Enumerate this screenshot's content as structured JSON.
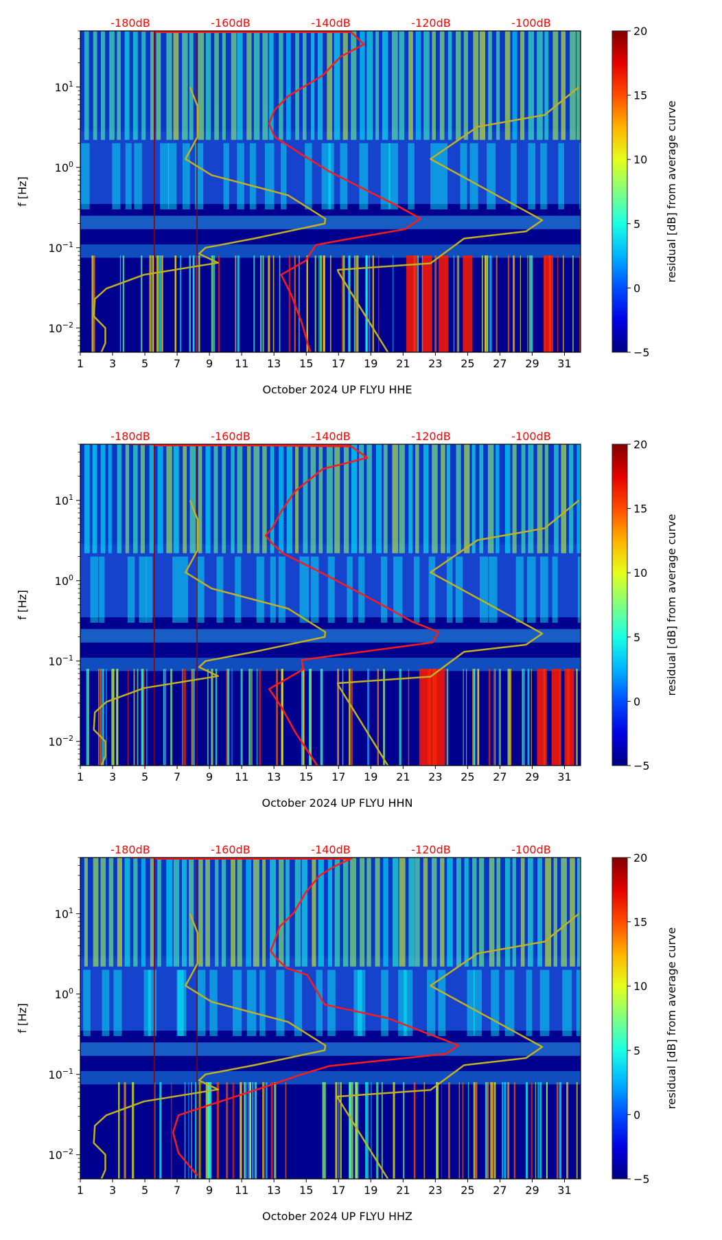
{
  "chart_data": [
    {
      "type": "heatmap",
      "panel": "HHE",
      "xlabel": "October 2024 UP FLYU  HHE",
      "ylabel": "f [Hz]",
      "x_ticks": [
        "1",
        "3",
        "5",
        "7",
        "9",
        "11",
        "13",
        "15",
        "17",
        "19",
        "21",
        "23",
        "25",
        "27",
        "29",
        "31"
      ],
      "x_tick_values": [
        1,
        3,
        5,
        7,
        9,
        11,
        13,
        15,
        17,
        19,
        21,
        23,
        25,
        27,
        29,
        31
      ],
      "xlim": [
        1,
        32
      ],
      "y_scale": "log",
      "ylim": [
        0.005,
        50
      ],
      "y_ticks": [
        {
          "base": "10",
          "exp": "1",
          "value": 10
        },
        {
          "base": "10",
          "exp": "0",
          "value": 1
        },
        {
          "base": "10",
          "exp": "−1",
          "value": 0.1
        },
        {
          "base": "10",
          "exp": "−2",
          "value": 0.01
        }
      ],
      "top_axis": {
        "labels": [
          "-180dB",
          "-160dB",
          "-140dB",
          "-120dB",
          "-100dB"
        ],
        "values": [
          -180,
          -160,
          -140,
          -120,
          -100
        ],
        "color": "#ff0000"
      },
      "colorbar": {
        "label": "residual [dB] from average curve",
        "range": [
          -5,
          20
        ],
        "ticks": [
          "20",
          "15",
          "10",
          "5",
          "0",
          "−5"
        ],
        "tick_values": [
          20,
          15,
          10,
          5,
          0,
          -5
        ],
        "colormap": "jet"
      },
      "series": [
        {
          "name": "mean PSD",
          "color": "#ff1a1a",
          "db": [
            -180,
            -136.2,
            -133.4,
            -138,
            -141.6,
            -148.5,
            -151.2,
            -152.3,
            -151.2,
            -145.8,
            -140.3,
            -132.1,
            -126.6,
            -122.1,
            -125.2,
            -137.5,
            -143,
            -145,
            -149.9,
            -147.9,
            -145.8,
            -144.1
          ],
          "hz": [
            50,
            50,
            34,
            24,
            14,
            7.7,
            5.2,
            3.5,
            2.4,
            1.45,
            0.89,
            0.49,
            0.33,
            0.23,
            0.17,
            0.125,
            0.108,
            0.069,
            0.046,
            0.026,
            0.0116,
            0.005
          ]
        },
        {
          "name": "NLNM",
          "color": "#c2b120",
          "db": [
            -168.1,
            -166.6,
            -166.6,
            -169,
            -163.8,
            -148.5,
            -141.1,
            -141.2,
            -155.3,
            -165,
            -166.3,
            -162.5,
            -177.3,
            -184.8,
            -187.1,
            -187.3,
            -185,
            -185,
            -185.8
          ],
          "hz": [
            10,
            5.8,
            2.4,
            1.27,
            0.8,
            0.45,
            0.23,
            0.2,
            0.13,
            0.1,
            0.084,
            0.065,
            0.046,
            0.031,
            0.023,
            0.014,
            0.01,
            0.0065,
            0.005
          ]
        },
        {
          "name": "NHNM",
          "color": "#c2b120",
          "db": [
            -90.5,
            -97.3,
            -110.7,
            -120.1,
            -97.8,
            -101,
            -113.4,
            -120.1,
            -138.6,
            -138.5,
            -128.6
          ],
          "hz": [
            10,
            4.5,
            3.2,
            1.27,
            0.22,
            0.16,
            0.13,
            0.064,
            0.053,
            0.05,
            0.005
          ]
        }
      ],
      "hot_days": [
        21.5,
        22.5,
        23.5,
        25.0,
        30.0
      ]
    },
    {
      "type": "heatmap",
      "panel": "HHN",
      "xlabel": "October 2024 UP FLYU  HHN",
      "ylabel": "f [Hz]",
      "x_ticks": [
        "1",
        "3",
        "5",
        "7",
        "9",
        "11",
        "13",
        "15",
        "17",
        "19",
        "21",
        "23",
        "25",
        "27",
        "29",
        "31"
      ],
      "x_tick_values": [
        1,
        3,
        5,
        7,
        9,
        11,
        13,
        15,
        17,
        19,
        21,
        23,
        25,
        27,
        29,
        31
      ],
      "xlim": [
        1,
        32
      ],
      "y_scale": "log",
      "ylim": [
        0.005,
        50
      ],
      "y_ticks": [
        {
          "base": "10",
          "exp": "1",
          "value": 10
        },
        {
          "base": "10",
          "exp": "0",
          "value": 1
        },
        {
          "base": "10",
          "exp": "−1",
          "value": 0.1
        },
        {
          "base": "10",
          "exp": "−2",
          "value": 0.01
        }
      ],
      "top_axis": {
        "labels": [
          "-180dB",
          "-160dB",
          "-140dB",
          "-120dB",
          "-100dB"
        ],
        "values": [
          -180,
          -160,
          -140,
          -120,
          -100
        ],
        "color": "#ff0000"
      },
      "colorbar": {
        "label": "residual [dB] from average curve",
        "range": [
          -5,
          20
        ],
        "ticks": [
          "20",
          "15",
          "10",
          "5",
          "0",
          "−5"
        ],
        "tick_values": [
          20,
          15,
          10,
          5,
          0,
          -5
        ],
        "colormap": "jet"
      },
      "series": [
        {
          "name": "mean PSD",
          "color": "#ff1a1a",
          "db": [
            -180,
            -135.9,
            -132.7,
            -138,
            -141.6,
            -147.1,
            -149.9,
            -151.6,
            -153,
            -151.9,
            -149.6,
            -140.3,
            -130,
            -123.8,
            -118.5,
            -119.7,
            -138.9,
            -145.8,
            -145.5,
            -152.3,
            -149.9,
            -147.1,
            -142.7
          ],
          "hz": [
            50,
            47,
            34,
            28,
            24.6,
            13,
            7.3,
            4.6,
            3.66,
            3.0,
            2.2,
            1.12,
            0.51,
            0.31,
            0.23,
            0.17,
            0.118,
            0.103,
            0.079,
            0.045,
            0.027,
            0.013,
            0.005
          ]
        },
        {
          "name": "NLNM",
          "color": "#c2b120",
          "db": [
            -168.1,
            -166.6,
            -166.6,
            -169,
            -163.8,
            -148.5,
            -141.1,
            -141.2,
            -155.3,
            -165,
            -166.3,
            -162.5,
            -177.3,
            -184.8,
            -187.1,
            -187.3,
            -185,
            -185,
            -185.8
          ],
          "hz": [
            10,
            5.8,
            2.4,
            1.27,
            0.8,
            0.45,
            0.23,
            0.2,
            0.13,
            0.1,
            0.084,
            0.065,
            0.046,
            0.031,
            0.023,
            0.014,
            0.01,
            0.0065,
            0.005
          ]
        },
        {
          "name": "NHNM",
          "color": "#c2b120",
          "db": [
            -90.5,
            -97.3,
            -110.7,
            -120.1,
            -97.8,
            -101,
            -113.4,
            -120.1,
            -138.6,
            -138.5,
            -128.6
          ],
          "hz": [
            10,
            4.5,
            3.2,
            1.27,
            0.22,
            0.16,
            0.13,
            0.064,
            0.053,
            0.05,
            0.005
          ]
        }
      ],
      "hot_days": [
        22.3,
        22.8,
        23.3,
        29.6,
        30.5,
        31.3
      ]
    },
    {
      "type": "heatmap",
      "panel": "HHZ",
      "xlabel": "October 2024 UP FLYU  HHZ",
      "ylabel": "f [Hz]",
      "x_ticks": [
        "1",
        "3",
        "5",
        "7",
        "9",
        "11",
        "13",
        "15",
        "17",
        "19",
        "21",
        "23",
        "25",
        "27",
        "29",
        "31"
      ],
      "x_tick_values": [
        1,
        3,
        5,
        7,
        9,
        11,
        13,
        15,
        17,
        19,
        21,
        23,
        25,
        27,
        29,
        31
      ],
      "xlim": [
        1,
        32
      ],
      "y_scale": "log",
      "ylim": [
        0.005,
        50
      ],
      "y_ticks": [
        {
          "base": "10",
          "exp": "1",
          "value": 10
        },
        {
          "base": "10",
          "exp": "0",
          "value": 1
        },
        {
          "base": "10",
          "exp": "−1",
          "value": 0.1
        },
        {
          "base": "10",
          "exp": "−2",
          "value": 0.01
        }
      ],
      "top_axis": {
        "labels": [
          "-180dB",
          "-160dB",
          "-140dB",
          "-120dB",
          "-100dB"
        ],
        "values": [
          -180,
          -160,
          -140,
          -120,
          -100
        ],
        "color": "#ff0000"
      },
      "colorbar": {
        "label": "residual [dB] from average curve",
        "range": [
          -5,
          20
        ],
        "ticks": [
          "20",
          "15",
          "10",
          "5",
          "0",
          "−5"
        ],
        "tick_values": [
          20,
          15,
          10,
          5,
          0,
          -5
        ],
        "colormap": "jet"
      },
      "series": [
        {
          "name": "mean PSD",
          "color": "#ff1a1a",
          "db": [
            -180,
            -135.8,
            -139.2,
            -142.2,
            -145,
            -147.4,
            -150.2,
            -151.2,
            -152,
            -150.9,
            -148.8,
            -144.7,
            -141.2,
            -128.6,
            -114.5,
            -117,
            -140.3,
            -145.8,
            -154,
            -165,
            -170.4,
            -171.5,
            -170.4,
            -166.6
          ],
          "hz": [
            50,
            49,
            39,
            30,
            18.4,
            10.2,
            6.9,
            4.6,
            3.45,
            2.8,
            2.1,
            1.73,
            0.74,
            0.5,
            0.23,
            0.18,
            0.127,
            0.1,
            0.067,
            0.04,
            0.031,
            0.019,
            0.0105,
            0.0055
          ]
        },
        {
          "name": "NLNM",
          "color": "#c2b120",
          "db": [
            -168.1,
            -166.6,
            -166.6,
            -169,
            -163.8,
            -148.5,
            -141.1,
            -141.2,
            -155.3,
            -165,
            -166.3,
            -162.5,
            -177.3,
            -184.8,
            -187.1,
            -187.3,
            -185,
            -185,
            -185.8
          ],
          "hz": [
            10,
            5.8,
            2.4,
            1.27,
            0.8,
            0.45,
            0.23,
            0.2,
            0.13,
            0.1,
            0.084,
            0.065,
            0.046,
            0.031,
            0.023,
            0.014,
            0.01,
            0.0065,
            0.005
          ]
        },
        {
          "name": "NHNM",
          "color": "#c2b120",
          "db": [
            -90.5,
            -97.3,
            -110.7,
            -120.1,
            -97.8,
            -101,
            -113.4,
            -120.1,
            -138.6,
            -138.5,
            -128.6
          ],
          "hz": [
            10,
            4.5,
            3.2,
            1.27,
            0.22,
            0.16,
            0.13,
            0.064,
            0.053,
            0.05,
            0.005
          ]
        }
      ],
      "hot_days": []
    }
  ]
}
